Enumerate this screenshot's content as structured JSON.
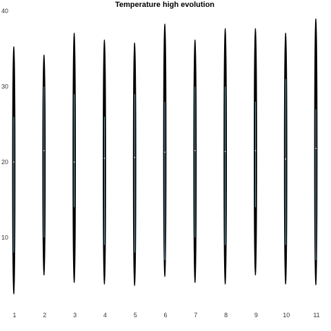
{
  "chart_data": {
    "type": "violin",
    "title": "Temperature high evolution",
    "xlabel": "",
    "ylabel": "",
    "categories": [
      "1",
      "2",
      "3",
      "4",
      "5",
      "6",
      "7",
      "8",
      "9",
      "10",
      "11"
    ],
    "ylim": [
      2,
      40
    ],
    "yticks": [
      10,
      20,
      30,
      40
    ],
    "grid": false,
    "series": [
      {
        "category": "1",
        "min": 2.5,
        "q1": 8.0,
        "median": 20.0,
        "q3": 26.0,
        "max": 35.3
      },
      {
        "category": "2",
        "min": 5.0,
        "q1": 10.0,
        "median": 21.5,
        "q3": 30.0,
        "max": 34.2
      },
      {
        "category": "3",
        "min": 4.0,
        "q1": 14.0,
        "median": 20.0,
        "q3": 29.0,
        "max": 37.1
      },
      {
        "category": "4",
        "min": 3.8,
        "q1": 9.0,
        "median": 20.5,
        "q3": 26.0,
        "max": 36.2
      },
      {
        "category": "5",
        "min": 3.6,
        "q1": 8.0,
        "median": 20.6,
        "q3": 29.0,
        "max": 35.8
      },
      {
        "category": "6",
        "min": 4.8,
        "q1": 7.0,
        "median": 21.3,
        "q3": 28.0,
        "max": 38.3
      },
      {
        "category": "7",
        "min": 4.0,
        "q1": 10.0,
        "median": 21.5,
        "q3": 30.0,
        "max": 36.2
      },
      {
        "category": "8",
        "min": 3.8,
        "q1": 9.0,
        "median": 21.4,
        "q3": 30.0,
        "max": 37.7
      },
      {
        "category": "9",
        "min": 5.0,
        "q1": 14.0,
        "median": 21.5,
        "q3": 28.0,
        "max": 37.7
      },
      {
        "category": "10",
        "min": 3.8,
        "q1": 9.0,
        "median": 20.4,
        "q3": 31.0,
        "max": 37.1
      },
      {
        "category": "11",
        "min": 3.7,
        "q1": 7.0,
        "median": 21.8,
        "q3": 27.0,
        "max": 39.0
      }
    ],
    "colors": {
      "violin": "#000000",
      "box": "#6fa8c0",
      "median": "#ffffff"
    }
  }
}
